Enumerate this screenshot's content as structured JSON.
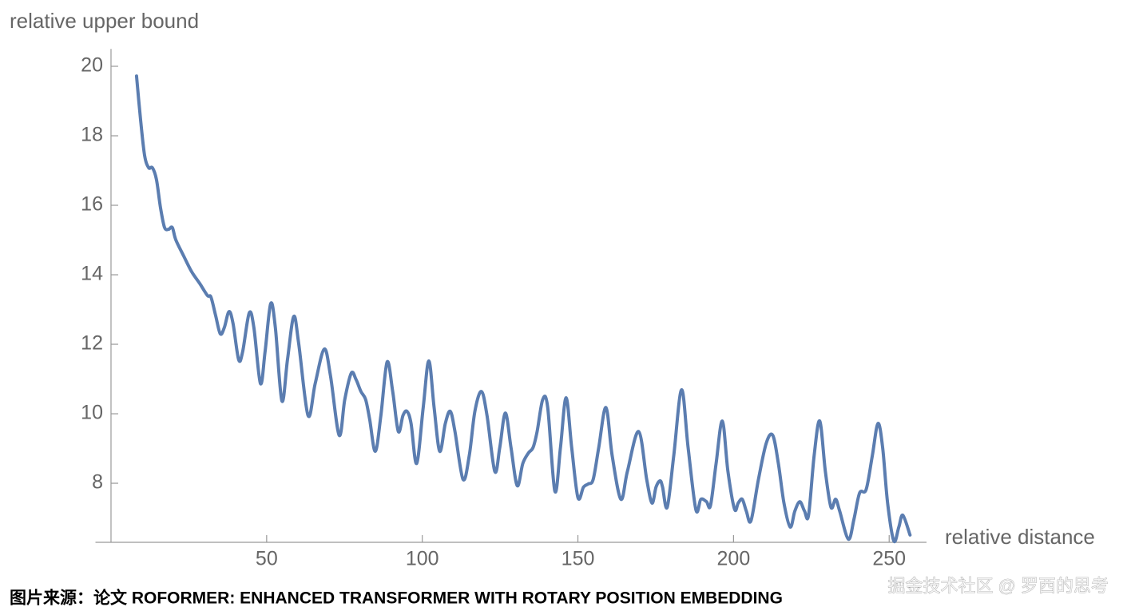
{
  "chart_data": {
    "type": "line",
    "y_label": "relative upper bound",
    "x_label": "relative distance",
    "caption": "图片来源：论文 ROFORMER: ENHANCED TRANSFORMER WITH ROTARY POSITION EMBEDDING",
    "watermark": "掘金技术社区 @ 罗西的思考",
    "xlim": [
      -5,
      262
    ],
    "xticks": [
      50,
      100,
      150,
      200,
      250
    ],
    "ylim": [
      6.3,
      20.5
    ],
    "yticks": [
      8,
      10,
      12,
      14,
      16,
      18,
      20
    ],
    "color": "#5b7db0",
    "x": [
      8.2,
      9.5,
      10.8,
      12.1,
      13.3,
      14.6,
      15.9,
      17.2,
      18.5,
      19.7,
      20.8,
      23.3,
      25.9,
      28.5,
      31.0,
      32.1,
      33.6,
      35.1,
      36.4,
      37.9,
      39.2,
      41.0,
      42.3,
      44.4,
      45.9,
      48.0,
      49.5,
      51.3,
      52.8,
      54.9,
      56.7,
      58.7,
      60.3,
      63.3,
      65.6,
      68.5,
      70.5,
      73.3,
      75.1,
      77.2,
      78.7,
      80.3,
      81.8,
      83.1,
      84.9,
      86.7,
      88.7,
      90.5,
      92.3,
      93.8,
      95.1,
      96.4,
      98.2,
      100.3,
      102.1,
      103.8,
      105.6,
      107.4,
      109.0,
      110.5,
      113.1,
      115.1,
      116.9,
      119.0,
      120.8,
      123.3,
      124.9,
      126.7,
      128.5,
      130.5,
      132.3,
      134.1,
      135.6,
      136.9,
      138.7,
      140.3,
      142.6,
      144.4,
      146.2,
      148.0,
      150.0,
      151.8,
      153.3,
      154.9,
      156.7,
      159.0,
      161.0,
      163.8,
      165.9,
      169.5,
      172.1,
      173.8,
      175.1,
      176.4,
      177.2,
      178.7,
      180.8,
      183.3,
      185.4,
      187.9,
      189.5,
      191.3,
      192.6,
      194.4,
      196.4,
      198.2,
      200.3,
      201.5,
      202.8,
      204.1,
      205.6,
      208.0,
      210.5,
      212.6,
      214.4,
      216.2,
      218.2,
      219.7,
      221.3,
      222.8,
      224.1,
      225.9,
      227.7,
      229.5,
      231.3,
      232.8,
      234.1,
      236.9,
      238.7,
      240.5,
      242.6,
      244.6,
      246.4,
      247.9,
      249.5,
      251.5,
      253.1,
      254.4,
      256.7
    ],
    "values": [
      19.72,
      18.46,
      17.43,
      17.08,
      17.08,
      16.74,
      15.93,
      15.36,
      15.31,
      15.36,
      15.01,
      14.55,
      14.09,
      13.75,
      13.4,
      13.36,
      12.83,
      12.3,
      12.48,
      12.94,
      12.6,
      11.56,
      11.79,
      12.9,
      12.48,
      10.87,
      11.79,
      13.17,
      12.48,
      10.37,
      11.56,
      12.8,
      12.02,
      9.95,
      10.87,
      11.86,
      11.1,
      9.38,
      10.41,
      11.17,
      10.99,
      10.64,
      10.41,
      9.84,
      8.92,
      9.95,
      11.49,
      10.64,
      9.49,
      9.95,
      10.07,
      9.72,
      8.57,
      10.18,
      11.52,
      10.18,
      8.92,
      9.72,
      10.07,
      9.49,
      8.11,
      8.8,
      10.07,
      10.64,
      9.95,
      8.34,
      9.03,
      10.02,
      9.03,
      7.93,
      8.57,
      8.87,
      9.03,
      9.49,
      10.41,
      10.18,
      7.77,
      9.03,
      10.46,
      9.03,
      7.59,
      7.89,
      7.98,
      8.11,
      9.03,
      10.18,
      8.8,
      7.54,
      8.34,
      9.49,
      8.11,
      7.43,
      7.89,
      8.07,
      7.89,
      7.31,
      8.8,
      10.69,
      9.03,
      7.24,
      7.54,
      7.47,
      7.36,
      8.57,
      9.79,
      8.34,
      7.26,
      7.43,
      7.54,
      7.2,
      6.92,
      8.11,
      9.15,
      9.38,
      8.57,
      7.43,
      6.74,
      7.2,
      7.47,
      7.2,
      7.08,
      8.8,
      9.79,
      8.34,
      7.31,
      7.54,
      7.2,
      6.39,
      6.97,
      7.72,
      7.82,
      8.8,
      9.72,
      9.03,
      7.43,
      6.34,
      6.74,
      7.08,
      6.51
    ]
  }
}
